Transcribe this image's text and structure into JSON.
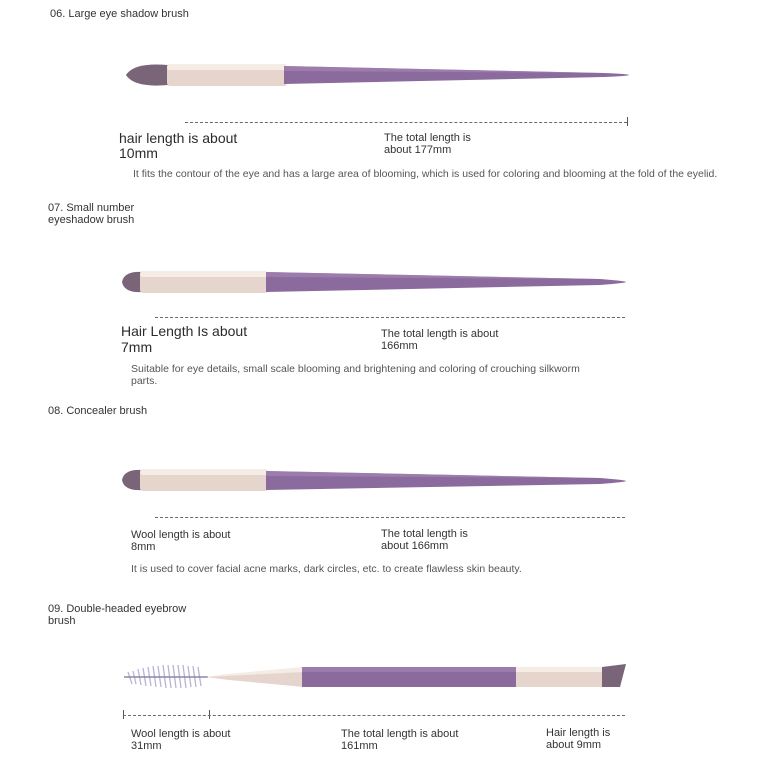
{
  "brushes": [
    {
      "title": "06. Large eye shadow brush",
      "hair_length_label": "hair length is about",
      "hair_length_value": "10mm",
      "total_length_label": "The total length is",
      "total_length_value": "about 177mm",
      "description": "It fits the contour of the eye and has a large area of blooming, which is used for coloring and blooming at the fold of the eyelid."
    },
    {
      "title": "07. Small number eyeshadow brush",
      "hair_length_label": "Hair Length Is about",
      "hair_length_value": "7mm",
      "total_length_label": "The total length is about",
      "total_length_value": "166mm",
      "description": "Suitable for eye details, small scale blooming and brightening and coloring of crouching silkworm parts."
    },
    {
      "title": "08. Concealer brush",
      "hair_length_label": "Wool length is about",
      "hair_length_value": "8mm",
      "total_length_label": "The total length is",
      "total_length_value": "about 166mm",
      "description": "It is used to cover facial acne marks, dark circles, etc. to create flawless skin beauty."
    },
    {
      "title": "09. Double-headed eyebrow brush",
      "spoolie_length_label": "Wool length is about",
      "spoolie_length_value": "31mm",
      "total_length_label": "The total length is about",
      "total_length_value": "161mm",
      "hair_length_label": "Hair length is",
      "hair_length_value": "about 9mm"
    }
  ],
  "colors": {
    "handle": "#8b6a9d",
    "ferrule": "#e6d5cd",
    "bristle": "#7a6478"
  }
}
